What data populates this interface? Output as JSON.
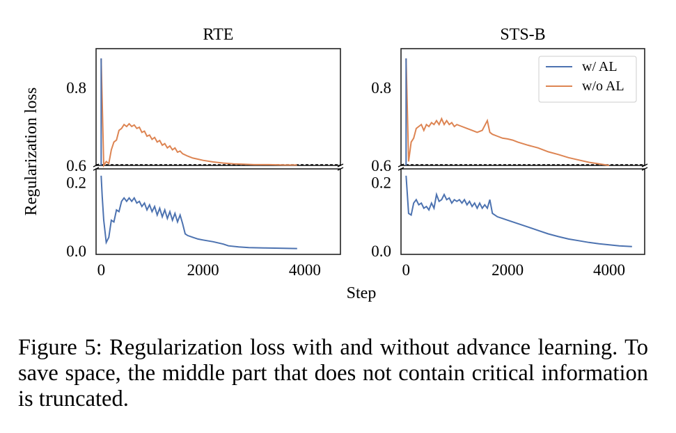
{
  "figure": {
    "ylabel": "Regularization loss",
    "xlabel": "Step"
  },
  "caption": {
    "label": "Figure 5:",
    "text": "Regularization loss with and without advance learning. To save space, the middle part that does not contain critical information is truncated."
  },
  "colors": {
    "w_al": "#4c72b0",
    "wo_al": "#dd8452"
  },
  "chart_data": [
    {
      "type": "line",
      "title": "RTE",
      "xlabel": "Step",
      "ylabel": "Regularization loss",
      "broken_y_axis": true,
      "xlim": [
        -100,
        4700
      ],
      "xticks": [
        0,
        2000,
        4000
      ],
      "xtick_labels": [
        "0",
        "2000",
        "4000"
      ],
      "ylim_upper": [
        0.6,
        0.9
      ],
      "yticks_upper": [
        0.6,
        0.8
      ],
      "ytick_labels_upper": [
        "0.6",
        "0.8"
      ],
      "ylim_lower": [
        -0.01,
        0.24
      ],
      "yticks_lower": [
        0.0,
        0.2
      ],
      "ytick_labels_lower": [
        "0.0",
        "0.2"
      ],
      "legend": false,
      "series": [
        {
          "name": "w/o AL",
          "color": "#dd8452",
          "points": [
            [
              0,
              0.875
            ],
            [
              50,
              0.6
            ],
            [
              100,
              0.61
            ],
            [
              150,
              0.605
            ],
            [
              200,
              0.64
            ],
            [
              250,
              0.66
            ],
            [
              300,
              0.665
            ],
            [
              350,
              0.69
            ],
            [
              400,
              0.695
            ],
            [
              450,
              0.705
            ],
            [
              500,
              0.7
            ],
            [
              550,
              0.707
            ],
            [
              600,
              0.7
            ],
            [
              650,
              0.704
            ],
            [
              700,
              0.695
            ],
            [
              750,
              0.698
            ],
            [
              800,
              0.685
            ],
            [
              850,
              0.688
            ],
            [
              900,
              0.675
            ],
            [
              950,
              0.678
            ],
            [
              1000,
              0.667
            ],
            [
              1050,
              0.672
            ],
            [
              1100,
              0.66
            ],
            [
              1150,
              0.664
            ],
            [
              1200,
              0.652
            ],
            [
              1250,
              0.656
            ],
            [
              1300,
              0.645
            ],
            [
              1350,
              0.65
            ],
            [
              1400,
              0.64
            ],
            [
              1450,
              0.645
            ],
            [
              1500,
              0.634
            ],
            [
              1550,
              0.637
            ],
            [
              1600,
              0.63
            ],
            [
              1700,
              0.624
            ],
            [
              1800,
              0.619
            ],
            [
              1900,
              0.616
            ],
            [
              2000,
              0.613
            ],
            [
              2200,
              0.609
            ],
            [
              2400,
              0.606
            ],
            [
              2600,
              0.604
            ],
            [
              2800,
              0.603
            ],
            [
              3000,
              0.602
            ],
            [
              3300,
              0.602
            ],
            [
              3600,
              0.601
            ],
            [
              3850,
              0.601
            ]
          ]
        },
        {
          "name": "w/ AL",
          "color": "#4c72b0",
          "points": [
            [
              0,
              0.22
            ],
            [
              20,
              0.16
            ],
            [
              50,
              0.09
            ],
            [
              100,
              0.025
            ],
            [
              150,
              0.04
            ],
            [
              200,
              0.09
            ],
            [
              250,
              0.085
            ],
            [
              300,
              0.12
            ],
            [
              350,
              0.115
            ],
            [
              400,
              0.145
            ],
            [
              450,
              0.155
            ],
            [
              500,
              0.145
            ],
            [
              550,
              0.155
            ],
            [
              600,
              0.145
            ],
            [
              650,
              0.155
            ],
            [
              700,
              0.14
            ],
            [
              750,
              0.145
            ],
            [
              800,
              0.13
            ],
            [
              850,
              0.14
            ],
            [
              900,
              0.12
            ],
            [
              950,
              0.135
            ],
            [
              1000,
              0.115
            ],
            [
              1050,
              0.13
            ],
            [
              1100,
              0.105
            ],
            [
              1150,
              0.125
            ],
            [
              1200,
              0.1
            ],
            [
              1250,
              0.12
            ],
            [
              1300,
              0.095
            ],
            [
              1350,
              0.115
            ],
            [
              1400,
              0.09
            ],
            [
              1450,
              0.11
            ],
            [
              1500,
              0.085
            ],
            [
              1550,
              0.105
            ],
            [
              1600,
              0.08
            ],
            [
              1650,
              0.05
            ],
            [
              1700,
              0.045
            ],
            [
              1800,
              0.04
            ],
            [
              1900,
              0.035
            ],
            [
              2000,
              0.032
            ],
            [
              2200,
              0.027
            ],
            [
              2400,
              0.02
            ],
            [
              2500,
              0.015
            ],
            [
              2700,
              0.012
            ],
            [
              2900,
              0.01
            ],
            [
              3200,
              0.009
            ],
            [
              3500,
              0.008
            ],
            [
              3850,
              0.007
            ]
          ]
        }
      ]
    },
    {
      "type": "line",
      "title": "STS-B",
      "xlabel": "Step",
      "ylabel": "Regularization loss",
      "broken_y_axis": true,
      "xlim": [
        -100,
        4700
      ],
      "xticks": [
        0,
        2000,
        4000
      ],
      "xtick_labels": [
        "0",
        "2000",
        "4000"
      ],
      "ylim_upper": [
        0.6,
        0.9
      ],
      "yticks_upper": [
        0.6,
        0.8
      ],
      "ytick_labels_upper": [
        "0.6",
        "0.8"
      ],
      "ylim_lower": [
        -0.01,
        0.24
      ],
      "yticks_lower": [
        0.0,
        0.2
      ],
      "ytick_labels_lower": [
        "0.0",
        "0.2"
      ],
      "legend": true,
      "legend_position": "top-right",
      "series": [
        {
          "name": "w/ AL",
          "color": "#4c72b0",
          "points": [
            [
              0,
              0.22
            ],
            [
              50,
              0.11
            ],
            [
              100,
              0.105
            ],
            [
              150,
              0.14
            ],
            [
              200,
              0.15
            ],
            [
              250,
              0.135
            ],
            [
              300,
              0.14
            ],
            [
              350,
              0.125
            ],
            [
              400,
              0.13
            ],
            [
              450,
              0.12
            ],
            [
              500,
              0.14
            ],
            [
              550,
              0.125
            ],
            [
              600,
              0.165
            ],
            [
              650,
              0.145
            ],
            [
              700,
              0.15
            ],
            [
              750,
              0.165
            ],
            [
              800,
              0.15
            ],
            [
              850,
              0.155
            ],
            [
              900,
              0.14
            ],
            [
              950,
              0.15
            ],
            [
              1000,
              0.145
            ],
            [
              1050,
              0.15
            ],
            [
              1100,
              0.14
            ],
            [
              1150,
              0.15
            ],
            [
              1200,
              0.135
            ],
            [
              1250,
              0.145
            ],
            [
              1300,
              0.13
            ],
            [
              1350,
              0.14
            ],
            [
              1400,
              0.125
            ],
            [
              1450,
              0.14
            ],
            [
              1500,
              0.125
            ],
            [
              1550,
              0.135
            ],
            [
              1600,
              0.125
            ],
            [
              1650,
              0.15
            ],
            [
              1700,
              0.11
            ],
            [
              1800,
              0.1
            ],
            [
              1900,
              0.095
            ],
            [
              2000,
              0.09
            ],
            [
              2200,
              0.08
            ],
            [
              2400,
              0.07
            ],
            [
              2600,
              0.06
            ],
            [
              2800,
              0.05
            ],
            [
              3000,
              0.042
            ],
            [
              3200,
              0.035
            ],
            [
              3400,
              0.03
            ],
            [
              3600,
              0.025
            ],
            [
              3800,
              0.021
            ],
            [
              4000,
              0.018
            ],
            [
              4200,
              0.015
            ],
            [
              4450,
              0.013
            ]
          ]
        },
        {
          "name": "w/o AL",
          "color": "#dd8452",
          "points": [
            [
              0,
              0.875
            ],
            [
              50,
              0.61
            ],
            [
              100,
              0.66
            ],
            [
              150,
              0.67
            ],
            [
              200,
              0.695
            ],
            [
              250,
              0.7
            ],
            [
              300,
              0.705
            ],
            [
              350,
              0.69
            ],
            [
              400,
              0.705
            ],
            [
              450,
              0.7
            ],
            [
              500,
              0.71
            ],
            [
              550,
              0.705
            ],
            [
              600,
              0.715
            ],
            [
              650,
              0.705
            ],
            [
              700,
              0.72
            ],
            [
              750,
              0.705
            ],
            [
              800,
              0.715
            ],
            [
              850,
              0.705
            ],
            [
              900,
              0.71
            ],
            [
              950,
              0.7
            ],
            [
              1000,
              0.705
            ],
            [
              1100,
              0.7
            ],
            [
              1200,
              0.695
            ],
            [
              1300,
              0.69
            ],
            [
              1400,
              0.685
            ],
            [
              1500,
              0.69
            ],
            [
              1600,
              0.715
            ],
            [
              1650,
              0.685
            ],
            [
              1700,
              0.68
            ],
            [
              1800,
              0.675
            ],
            [
              1900,
              0.67
            ],
            [
              2000,
              0.668
            ],
            [
              2100,
              0.665
            ],
            [
              2200,
              0.66
            ],
            [
              2400,
              0.652
            ],
            [
              2600,
              0.645
            ],
            [
              2800,
              0.635
            ],
            [
              3000,
              0.628
            ],
            [
              3200,
              0.62
            ],
            [
              3400,
              0.614
            ],
            [
              3600,
              0.608
            ],
            [
              3800,
              0.604
            ],
            [
              4000,
              0.6
            ],
            [
              4200,
              0.596
            ],
            [
              4450,
              0.593
            ]
          ]
        }
      ]
    }
  ]
}
